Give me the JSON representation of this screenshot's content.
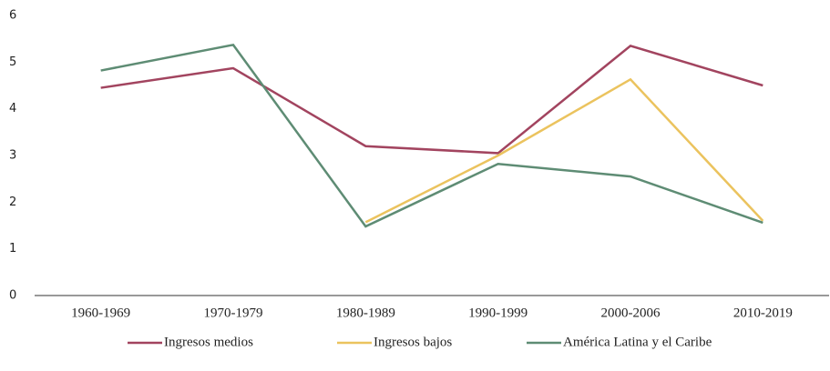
{
  "chart_data": {
    "type": "line",
    "categories": [
      "1960-1969",
      "1970-1979",
      "1980-1989",
      "1990-1999",
      "2000-2006",
      "2010-2019"
    ],
    "series": [
      {
        "name": "Ingresos medios",
        "color": "#a2445f",
        "values": [
          4.45,
          4.87,
          3.2,
          3.05,
          5.35,
          4.5
        ]
      },
      {
        "name": "Ingresos bajos",
        "color": "#ebc35e",
        "values": [
          null,
          null,
          1.57,
          3.0,
          4.63,
          1.6
        ]
      },
      {
        "name": "América Latina y el Caribe",
        "color": "#5e8c74",
        "values": [
          4.82,
          5.37,
          1.48,
          2.82,
          2.55,
          1.56
        ]
      }
    ],
    "ylim": [
      0,
      6
    ],
    "yticks": [
      0,
      1,
      2,
      3,
      4,
      5,
      6
    ],
    "grid": false,
    "legend": "bottom"
  }
}
